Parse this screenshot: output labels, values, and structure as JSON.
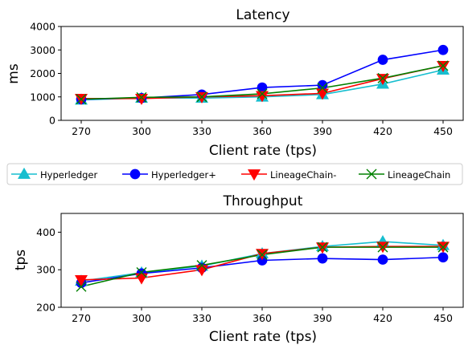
{
  "chart_data": [
    {
      "type": "line",
      "title": "Latency",
      "xlabel": "Client rate (tps)",
      "ylabel": "ms",
      "x": [
        270,
        300,
        330,
        360,
        390,
        420,
        450
      ],
      "xticks": [
        "270",
        "300",
        "330",
        "360",
        "390",
        "420",
        "450"
      ],
      "ylim": [
        0,
        4000
      ],
      "yticks": [
        "0",
        "1000",
        "2000",
        "3000",
        "4000"
      ],
      "grid": false,
      "series": [
        {
          "name": "Hyperledger",
          "color": "#17becf",
          "marker": "triangle-up",
          "values": [
            870,
            950,
            950,
            1000,
            1100,
            1550,
            2150
          ]
        },
        {
          "name": "Hyperledger+",
          "color": "#0000ff",
          "marker": "circle",
          "values": [
            900,
            950,
            1100,
            1400,
            1500,
            2580,
            3000
          ]
        },
        {
          "name": "LineageChain-",
          "color": "#ff0000",
          "marker": "triangle-down",
          "values": [
            930,
            930,
            1000,
            1050,
            1150,
            1780,
            2330
          ]
        },
        {
          "name": "LineageChain",
          "color": "#008000",
          "marker": "x",
          "values": [
            900,
            980,
            1000,
            1130,
            1380,
            1800,
            2330
          ]
        }
      ]
    },
    {
      "type": "line",
      "title": "Throughput",
      "xlabel": "Client rate (tps)",
      "ylabel": "tps",
      "x": [
        270,
        300,
        330,
        360,
        390,
        420,
        450
      ],
      "xticks": [
        "270",
        "300",
        "330",
        "360",
        "390",
        "420",
        "450"
      ],
      "ylim": [
        200,
        450
      ],
      "yticks": [
        "200",
        "300",
        "400"
      ],
      "grid": false,
      "series": [
        {
          "name": "Hyperledger",
          "color": "#17becf",
          "marker": "triangle-up",
          "values": [
            270,
            292,
            310,
            343,
            362,
            375,
            365
          ]
        },
        {
          "name": "Hyperledger+",
          "color": "#0000ff",
          "marker": "circle",
          "values": [
            265,
            290,
            305,
            325,
            330,
            327,
            333
          ]
        },
        {
          "name": "LineageChain-",
          "color": "#ff0000",
          "marker": "triangle-down",
          "values": [
            273,
            278,
            300,
            343,
            360,
            362,
            362
          ]
        },
        {
          "name": "LineageChain",
          "color": "#008000",
          "marker": "x",
          "values": [
            255,
            293,
            312,
            340,
            360,
            360,
            360
          ]
        }
      ]
    }
  ],
  "legend": {
    "placement": "between-charts",
    "items": [
      "Hyperledger",
      "Hyperledger+",
      "LineageChain-",
      "LineageChain"
    ]
  }
}
